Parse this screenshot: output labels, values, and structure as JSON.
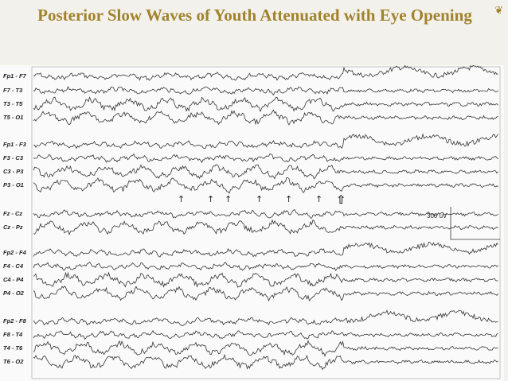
{
  "slide": {
    "title": "Posterior Slow Waves of Youth Attenuated with Eye Opening",
    "bullet_icon": "flourish-icon",
    "accent_color": "#a1832c"
  },
  "eeg": {
    "channels": [
      "Fp1 - F7",
      "F7 - T3",
      "T3 - T5",
      "T5 - O1",
      "Fp1 - F3",
      "F3 - C3",
      "C3 - P3",
      "P3 - O1",
      "Fz - Cz",
      "Cz - Pz",
      "Fp2 - F4",
      "F4 - C4",
      "C4 - P4",
      "P4 - O2",
      "Fp2 - F8",
      "F8 - T4",
      "T4 - T6",
      "T6 - O2"
    ],
    "scale_label": "300 uV",
    "slow_wave_markers": 6,
    "eye_opening_marker": "open-arrow-icon"
  }
}
